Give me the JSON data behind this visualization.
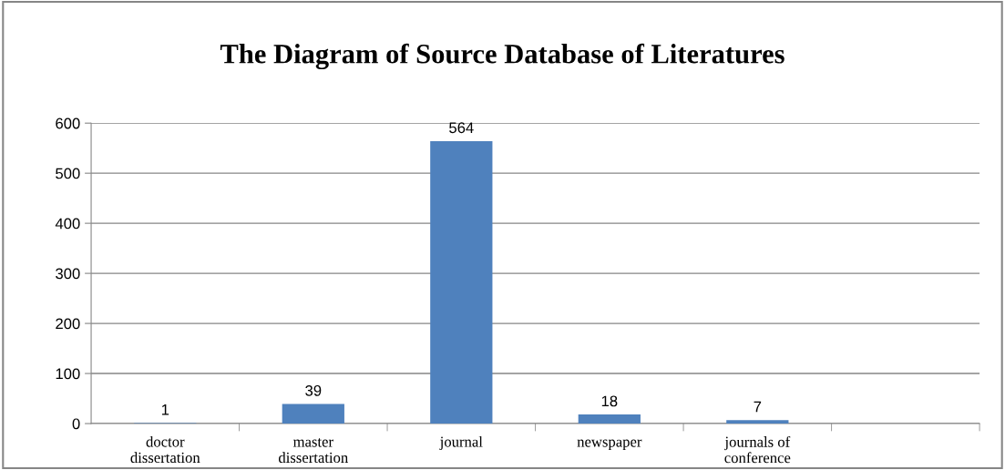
{
  "chart_data": {
    "type": "bar",
    "title": "The Diagram of Source Database of Literatures",
    "categories": [
      "doctor\ndissertation",
      "master\ndissertation",
      "journal",
      "newspaper",
      "journals of\nconference",
      null
    ],
    "values": [
      1,
      39,
      564,
      18,
      7,
      null
    ],
    "color": "#4f81bd",
    "ylim": [
      0,
      600
    ],
    "yticks": [
      0,
      100,
      200,
      300,
      400,
      500,
      600
    ],
    "grid": "y",
    "data_labels": true
  }
}
